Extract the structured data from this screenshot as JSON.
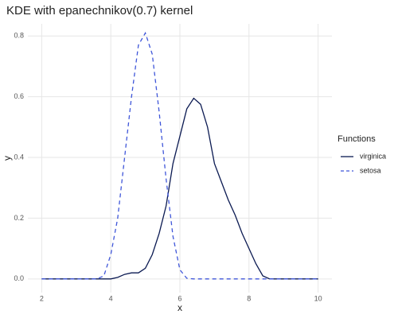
{
  "chart_data": {
    "type": "line",
    "title": "KDE with epanechnikov(0.7) kernel",
    "x_label": "x",
    "y_label": "y",
    "legend_title": "Functions",
    "legend_position": "right",
    "grid": true,
    "x": [
      2.0,
      2.2,
      2.4,
      2.6,
      2.8,
      3.0,
      3.2,
      3.4,
      3.6,
      3.8,
      4.0,
      4.2,
      4.4,
      4.6,
      4.8,
      5.0,
      5.2,
      5.4,
      5.6,
      5.8,
      6.0,
      6.2,
      6.4,
      6.6,
      6.8,
      7.0,
      7.2,
      7.4,
      7.6,
      7.8,
      8.0,
      8.2,
      8.4,
      8.6,
      8.8,
      9.0,
      9.2,
      9.4,
      9.6,
      9.8,
      10.0
    ],
    "series": [
      {
        "name": "virginica",
        "color": "#0b1a52",
        "linestyle": "solid",
        "values": [
          0,
          0,
          0,
          0,
          0,
          0,
          0,
          0,
          0,
          0,
          0,
          0.005,
          0.015,
          0.02,
          0.02,
          0.035,
          0.08,
          0.15,
          0.24,
          0.38,
          0.47,
          0.56,
          0.595,
          0.575,
          0.5,
          0.38,
          0.32,
          0.26,
          0.21,
          0.15,
          0.1,
          0.05,
          0.01,
          0,
          0,
          0,
          0,
          0,
          0,
          0,
          0
        ]
      },
      {
        "name": "setosa",
        "color": "#3f56d9",
        "linestyle": "dashed",
        "values": [
          0,
          0,
          0,
          0,
          0,
          0,
          0,
          0,
          0,
          0.01,
          0.08,
          0.2,
          0.4,
          0.6,
          0.77,
          0.81,
          0.74,
          0.55,
          0.33,
          0.14,
          0.03,
          0.002,
          0,
          0,
          0,
          0,
          0,
          0,
          0,
          0,
          0,
          0,
          0,
          0,
          0,
          0,
          0,
          0,
          0,
          0,
          0
        ]
      }
    ],
    "xlim": [
      1.6,
      10.4
    ],
    "xticks": [
      2,
      4,
      6,
      8,
      10
    ],
    "ylim": [
      -0.045,
      0.84
    ],
    "yticks": [
      {
        "value": 0,
        "label": "0.0"
      },
      {
        "value": 0.2,
        "label": "0.2"
      },
      {
        "value": 0.4,
        "label": "0.4"
      },
      {
        "value": 0.6,
        "label": "0.6"
      },
      {
        "value": 0.8,
        "label": "0.8"
      }
    ]
  }
}
